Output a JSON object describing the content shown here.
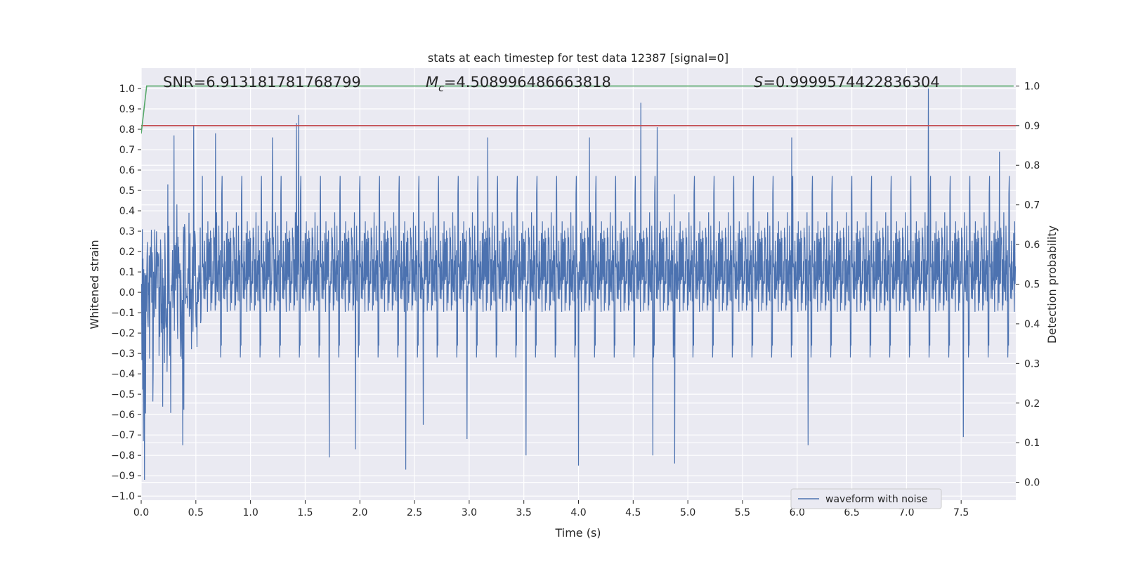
{
  "chart_data": {
    "type": "line",
    "title": "stats at each timestep for test data 12387 [signal=0]",
    "xlabel": "Time (s)",
    "ylabel": "Whitened strain",
    "y2label": "Detection probability",
    "xlim": [
      0.0,
      8.0
    ],
    "ylim": [
      -1.02,
      1.1
    ],
    "y2lim": [
      -0.045,
      1.045
    ],
    "xticks": [
      "0.0",
      "0.5",
      "1.0",
      "1.5",
      "2.0",
      "2.5",
      "3.0",
      "3.5",
      "4.0",
      "4.5",
      "5.0",
      "5.5",
      "6.0",
      "6.5",
      "7.0",
      "7.5"
    ],
    "yticks": [
      "1.0",
      "0.9",
      "0.8",
      "0.7",
      "0.6",
      "0.5",
      "0.4",
      "0.3",
      "0.2",
      "0.1",
      "0.0",
      "−0.1",
      "−0.2",
      "−0.3",
      "−0.4",
      "−0.5",
      "−0.6",
      "−0.7",
      "−0.8",
      "−0.9",
      "−1.0"
    ],
    "y2ticks": [
      "1.0",
      "0.9",
      "0.8",
      "0.7",
      "0.6",
      "0.5",
      "0.4",
      "0.3",
      "0.2",
      "0.1",
      "0.0"
    ],
    "stats": {
      "snr_label": "SNR=",
      "snr_value": "6.913181781768799",
      "mc_symbol": "M",
      "mc_subscript": "c",
      "mc_value": "=4.508996486663818",
      "s_symbol": "S",
      "s_value": "=0.9999574422836304"
    },
    "legend": {
      "label": "waveform with noise",
      "placement": "lower-right"
    },
    "threshold": {
      "value": 0.9,
      "color": "#c44e52"
    },
    "detection_probability": {
      "color": "#55a868",
      "x": [
        0.0,
        0.05,
        7.98
      ],
      "values": [
        0.88,
        1.0,
        1.0
      ]
    },
    "series": [
      {
        "name": "waveform with noise",
        "color": "#4c72b0",
        "duration_s": 8.0,
        "typical_range": [
          -0.35,
          0.42
        ],
        "peaks": [
          {
            "t": 0.03,
            "v": -0.92
          },
          {
            "t": 0.02,
            "v": -0.73
          },
          {
            "t": 0.3,
            "v": 0.77
          },
          {
            "t": 0.38,
            "v": -0.75
          },
          {
            "t": 0.48,
            "v": 0.82
          },
          {
            "t": 0.68,
            "v": 0.78
          },
          {
            "t": 1.2,
            "v": 0.76
          },
          {
            "t": 1.42,
            "v": 0.83
          },
          {
            "t": 1.44,
            "v": 0.87
          },
          {
            "t": 1.72,
            "v": -0.81
          },
          {
            "t": 1.96,
            "v": -0.77
          },
          {
            "t": 2.42,
            "v": -0.87
          },
          {
            "t": 2.58,
            "v": -0.65
          },
          {
            "t": 2.98,
            "v": -0.72
          },
          {
            "t": 3.17,
            "v": 0.76
          },
          {
            "t": 3.52,
            "v": -0.8
          },
          {
            "t": 4.0,
            "v": -0.85
          },
          {
            "t": 4.1,
            "v": 0.76
          },
          {
            "t": 4.57,
            "v": 0.93
          },
          {
            "t": 4.72,
            "v": 0.81
          },
          {
            "t": 4.68,
            "v": -0.8
          },
          {
            "t": 4.88,
            "v": -0.84
          },
          {
            "t": 5.95,
            "v": 0.76
          },
          {
            "t": 6.1,
            "v": -0.75
          },
          {
            "t": 7.2,
            "v": 1.0
          },
          {
            "t": 7.52,
            "v": -0.71
          },
          {
            "t": 7.85,
            "v": 0.69
          }
        ]
      }
    ]
  }
}
